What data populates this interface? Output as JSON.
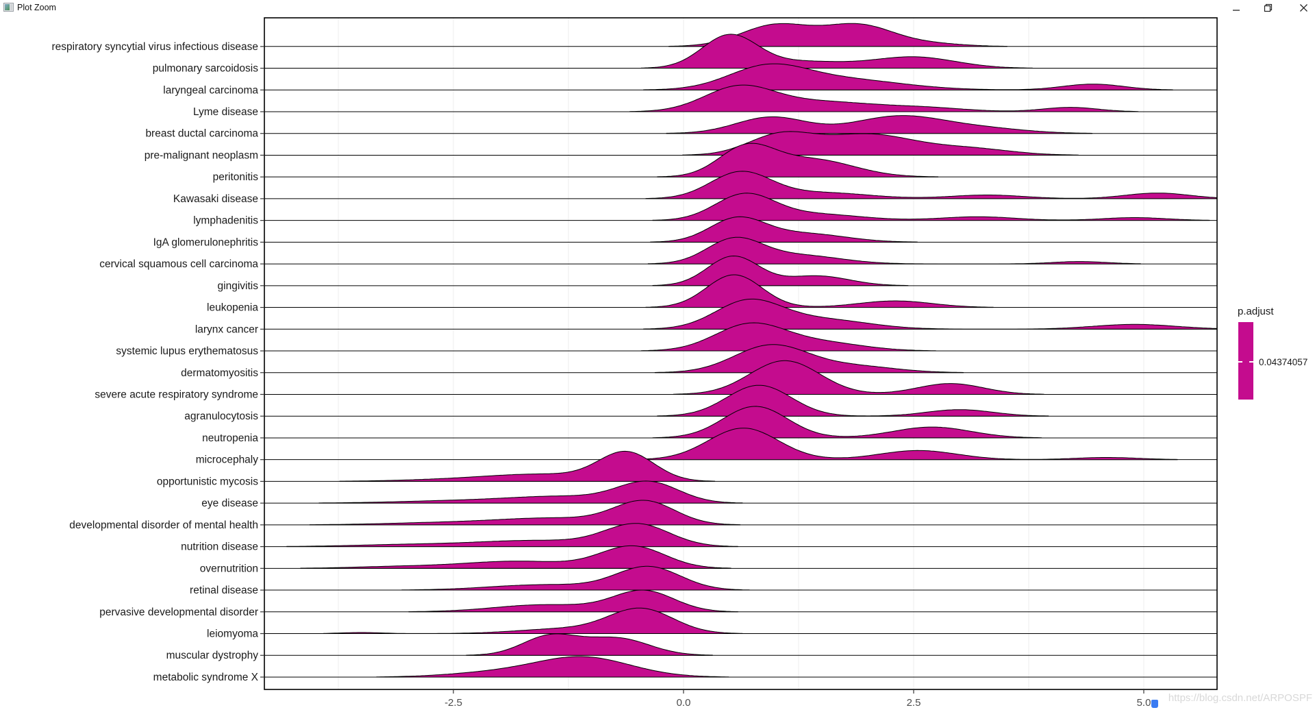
{
  "window": {
    "title": "Plot Zoom",
    "icons": {
      "app": "plot-window-icon",
      "minimize": "minimize-icon",
      "restore": "restore-window-icon",
      "close": "close-icon"
    }
  },
  "watermark": {
    "text": "https://blog.csdn.net/ARPOSPF"
  },
  "colors": {
    "ridge_fill": "#C40C8E",
    "ridge_stroke": "#000000",
    "panel_border": "#000000",
    "gridline": "#f0f0f0",
    "axis_text": "#4d4d4d",
    "y_label_text": "#1a1a1a",
    "tick_mark": "#333333",
    "watermark_text": "#d8d8d8"
  },
  "chart_data": {
    "type": "ridgeline",
    "xlabel": "",
    "ylabel": "",
    "xlim": [
      -4.56,
      5.81
    ],
    "x_ticks": {
      "values": [
        -2.5,
        0.0,
        2.5,
        5.0
      ],
      "labels": [
        "-2.5",
        "0.0",
        "2.5",
        "5.0"
      ]
    },
    "gridlines": {
      "vertical_at": [
        -3.75,
        -2.5,
        -1.25,
        0,
        1.25,
        2.5,
        3.75,
        5
      ],
      "horizontal": false
    },
    "legend": {
      "title": "p.adjust",
      "value_label": "0.04374057",
      "position": "right"
    },
    "note": "each row is a density ridge; components are [mean, sd, peak_height_in_row_units] of gaussian mixture read off the plot",
    "rows": [
      {
        "label": "respiratory syncytial virus infectious disease",
        "peak_x": 1.4,
        "components": [
          [
            1.0,
            0.38,
            0.98
          ],
          [
            1.9,
            0.38,
            0.98
          ],
          [
            2.7,
            0.35,
            0.12
          ]
        ]
      },
      {
        "label": "pulmonary sarcoidosis",
        "peak_x": 0.5,
        "components": [
          [
            0.5,
            0.3,
            1.5
          ],
          [
            1.3,
            0.45,
            0.3
          ],
          [
            2.5,
            0.45,
            0.52
          ]
        ]
      },
      {
        "label": "laryngeal carcinoma",
        "peak_x": 0.9,
        "components": [
          [
            0.9,
            0.42,
            0.95
          ],
          [
            1.7,
            0.65,
            0.5
          ],
          [
            4.45,
            0.33,
            0.27
          ]
        ]
      },
      {
        "label": "Lyme disease",
        "peak_x": 0.6,
        "components": [
          [
            0.6,
            0.38,
            1.1
          ],
          [
            1.5,
            0.55,
            0.45
          ],
          [
            2.6,
            0.45,
            0.18
          ],
          [
            4.2,
            0.3,
            0.2
          ]
        ]
      },
      {
        "label": "breast ductal carcinoma",
        "peak_x": 2.35,
        "components": [
          [
            0.95,
            0.38,
            0.75
          ],
          [
            2.35,
            0.5,
            0.8
          ],
          [
            3.3,
            0.45,
            0.2
          ]
        ]
      },
      {
        "label": "pre-malignant neoplasm",
        "peak_x": 2.0,
        "components": [
          [
            1.05,
            0.35,
            0.9
          ],
          [
            2.0,
            0.5,
            0.95
          ],
          [
            3.1,
            0.45,
            0.3
          ]
        ]
      },
      {
        "label": "peritonitis",
        "peak_x": 0.68,
        "components": [
          [
            0.68,
            0.3,
            1.3
          ],
          [
            1.4,
            0.45,
            0.8
          ]
        ]
      },
      {
        "label": "Kawasaki disease",
        "peak_x": 0.62,
        "components": [
          [
            0.62,
            0.33,
            1.2
          ],
          [
            1.5,
            0.5,
            0.28
          ],
          [
            3.3,
            0.4,
            0.17
          ],
          [
            5.15,
            0.35,
            0.26
          ]
        ]
      },
      {
        "label": "lymphadenitis",
        "peak_x": 0.66,
        "components": [
          [
            0.66,
            0.32,
            1.15
          ],
          [
            1.4,
            0.5,
            0.3
          ],
          [
            3.2,
            0.4,
            0.17
          ],
          [
            4.9,
            0.35,
            0.13
          ]
        ]
      },
      {
        "label": "IgA glomerulonephritis",
        "peak_x": 0.58,
        "components": [
          [
            0.58,
            0.3,
            1.05
          ],
          [
            1.3,
            0.45,
            0.4
          ]
        ]
      },
      {
        "label": "cervical squamous cell carcinoma",
        "peak_x": 0.55,
        "components": [
          [
            0.55,
            0.3,
            1.1
          ],
          [
            1.25,
            0.45,
            0.4
          ],
          [
            4.3,
            0.3,
            0.11
          ]
        ]
      },
      {
        "label": "gingivitis",
        "peak_x": 0.54,
        "components": [
          [
            0.54,
            0.28,
            1.35
          ],
          [
            1.45,
            0.35,
            0.45
          ]
        ]
      },
      {
        "label": "leukopenia",
        "peak_x": 0.55,
        "components": [
          [
            0.55,
            0.3,
            1.5
          ],
          [
            2.3,
            0.4,
            0.3
          ]
        ]
      },
      {
        "label": "larynx cancer",
        "peak_x": 0.7,
        "components": [
          [
            0.7,
            0.36,
            1.25
          ],
          [
            1.5,
            0.5,
            0.45
          ],
          [
            4.9,
            0.45,
            0.22
          ]
        ]
      },
      {
        "label": "systemic lupus erythematosus",
        "peak_x": 0.72,
        "components": [
          [
            0.72,
            0.38,
            1.2
          ],
          [
            1.5,
            0.45,
            0.38
          ]
        ]
      },
      {
        "label": "dermatomyositis",
        "peak_x": 0.95,
        "components": [
          [
            0.95,
            0.4,
            1.25
          ],
          [
            1.85,
            0.45,
            0.3
          ]
        ]
      },
      {
        "label": "severe acute respiratory syndrome",
        "peak_x": 1.1,
        "components": [
          [
            1.1,
            0.38,
            1.55
          ],
          [
            2.9,
            0.36,
            0.5
          ]
        ]
      },
      {
        "label": "agranulocytosis",
        "peak_x": 0.82,
        "components": [
          [
            0.82,
            0.35,
            1.42
          ],
          [
            3.0,
            0.36,
            0.3
          ]
        ]
      },
      {
        "label": "neutropenia",
        "peak_x": 0.78,
        "components": [
          [
            0.78,
            0.35,
            1.45
          ],
          [
            2.7,
            0.42,
            0.5
          ]
        ]
      },
      {
        "label": "microcephaly",
        "peak_x": 0.65,
        "components": [
          [
            0.65,
            0.38,
            1.45
          ],
          [
            2.55,
            0.42,
            0.42
          ],
          [
            4.6,
            0.35,
            0.1
          ]
        ]
      },
      {
        "label": "opportunistic mycosis",
        "peak_x": -0.62,
        "components": [
          [
            -0.62,
            0.3,
            1.3
          ],
          [
            -1.5,
            0.55,
            0.3
          ],
          [
            -2.4,
            0.6,
            0.1
          ]
        ]
      },
      {
        "label": "eye disease",
        "peak_x": -0.38,
        "components": [
          [
            -0.38,
            0.33,
            0.92
          ],
          [
            -1.3,
            0.6,
            0.3
          ],
          [
            -2.5,
            0.65,
            0.1
          ]
        ]
      },
      {
        "label": "developmental disorder of mental health",
        "peak_x": -0.42,
        "components": [
          [
            -0.42,
            0.33,
            1.05
          ],
          [
            -1.4,
            0.6,
            0.3
          ],
          [
            -2.6,
            0.65,
            0.1
          ]
        ]
      },
      {
        "label": "nutrition disease",
        "peak_x": -0.5,
        "components": [
          [
            -0.5,
            0.35,
            1.0
          ],
          [
            -1.6,
            0.65,
            0.28
          ],
          [
            -3.0,
            0.6,
            0.09
          ]
        ]
      },
      {
        "label": "overnutrition",
        "peak_x": -0.55,
        "components": [
          [
            -0.55,
            0.35,
            1.0
          ],
          [
            -1.8,
            0.6,
            0.33
          ],
          [
            -3.1,
            0.5,
            0.08
          ]
        ]
      },
      {
        "label": "retinal disease",
        "peak_x": -0.38,
        "components": [
          [
            -0.38,
            0.35,
            1.05
          ],
          [
            -1.5,
            0.6,
            0.25
          ]
        ]
      },
      {
        "label": "pervasive developmental disorder",
        "peak_x": -0.43,
        "components": [
          [
            -0.43,
            0.33,
            0.95
          ],
          [
            -1.5,
            0.55,
            0.33
          ]
        ]
      },
      {
        "label": "leiomyoma",
        "peak_x": -0.46,
        "components": [
          [
            -0.46,
            0.35,
            1.12
          ],
          [
            -1.3,
            0.5,
            0.22
          ],
          [
            -3.5,
            0.22,
            0.05
          ]
        ]
      },
      {
        "label": "muscular dystrophy",
        "peak_x": -1.45,
        "components": [
          [
            -1.45,
            0.3,
            0.88
          ],
          [
            -0.72,
            0.35,
            0.78
          ]
        ]
      },
      {
        "label": "metabolic syndrome X",
        "peak_x": -1.1,
        "components": [
          [
            -1.1,
            0.52,
            0.92
          ],
          [
            -2.1,
            0.5,
            0.18
          ]
        ]
      }
    ]
  }
}
